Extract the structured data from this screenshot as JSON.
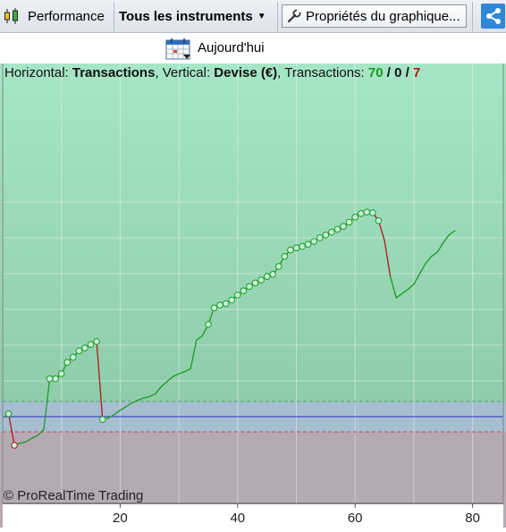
{
  "toolbar": {
    "performance_label": "Performance",
    "instruments_label": "Tous les instruments",
    "properties_label": "Propriétés du graphique..."
  },
  "date_bar": {
    "today_label": "Aujourd'hui"
  },
  "info": {
    "horizontal_label": "Horizontal:",
    "horizontal_value": "Transactions",
    "vertical_label": ", Vertical:",
    "vertical_value": "Devise (€)",
    "transactions_label": ", Transactions:",
    "winners": "70",
    "sep1": "/",
    "neutral": "0",
    "sep2": "/",
    "losers": "7"
  },
  "copyright": "© ProRealTime Trading",
  "colors": {
    "gain_line": "#1a9a28",
    "loss_line": "#b01818",
    "zero_line": "#2030c8",
    "accent": "#2f87d6"
  },
  "chart_data": {
    "type": "line",
    "x_ticks": [
      "20",
      "40",
      "60",
      "80"
    ],
    "xlim": [
      0,
      85
    ],
    "ylim": [
      -3,
      34
    ],
    "grid": true,
    "baseline_y": 0,
    "band_upper_y": 1.2,
    "band_lower_y": -1.2,
    "x": [
      1,
      2,
      3,
      4,
      5,
      6,
      7,
      8,
      9,
      10,
      11,
      12,
      13,
      14,
      15,
      16,
      17,
      18,
      19,
      20,
      21,
      22,
      23,
      24,
      25,
      26,
      27,
      28,
      29,
      30,
      31,
      32,
      33,
      34,
      35,
      36,
      37,
      38,
      39,
      40,
      41,
      42,
      43,
      44,
      45,
      46,
      47,
      48,
      49,
      50,
      51,
      52,
      53,
      54,
      55,
      56,
      57,
      58,
      59,
      60,
      61,
      62,
      63,
      64,
      65,
      66,
      67,
      68,
      69,
      70,
      71,
      72,
      73,
      74,
      75,
      76,
      77
    ],
    "y": [
      0.4,
      -4.0,
      -3.7,
      -3.5,
      -3.0,
      -2.6,
      -1.8,
      5.3,
      5.3,
      6.0,
      7.6,
      8.3,
      9.2,
      9.6,
      10.1,
      10.5,
      -0.4,
      -0.2,
      0.3,
      0.9,
      1.4,
      1.9,
      2.3,
      2.6,
      2.8,
      3.2,
      4.2,
      4.9,
      5.6,
      6.0,
      6.3,
      6.7,
      10.7,
      11.3,
      12.9,
      15.2,
      15.6,
      15.8,
      16.3,
      17.0,
      17.6,
      18.2,
      18.7,
      19.1,
      19.6,
      19.9,
      21.0,
      22.4,
      23.3,
      23.6,
      23.8,
      24.1,
      24.5,
      25.0,
      25.4,
      25.8,
      26.2,
      26.6,
      27.2,
      27.9,
      28.4,
      28.6,
      28.5,
      27.4,
      24.6,
      19.6,
      16.6,
      17.2,
      17.8,
      18.5,
      20.0,
      21.4,
      22.4,
      23.0,
      24.3,
      25.4,
      26.0
    ],
    "markers_count": 44,
    "losing_segments": [
      [
        1,
        2
      ],
      [
        16,
        17
      ],
      [
        63,
        64
      ],
      [
        64,
        65
      ],
      [
        65,
        66
      ]
    ]
  }
}
